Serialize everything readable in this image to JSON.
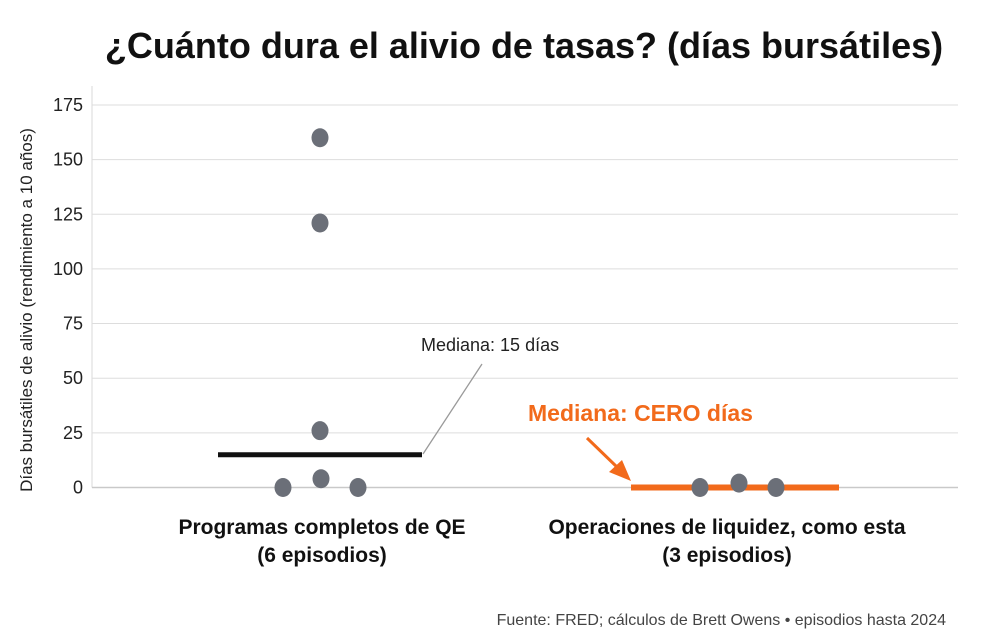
{
  "chart_data": {
    "type": "scatter",
    "title": "¿Cuánto dura el alivio de tasas? (días bursátiles)",
    "ylabel": "Días bursátiles de alivio (rendimiento a 10 años)",
    "ylim": [
      0,
      175
    ],
    "yticks": [
      0,
      25,
      50,
      75,
      100,
      125,
      150,
      175
    ],
    "grid": true,
    "categories": [
      {
        "label_line1": "Programas completos de QE",
        "label_line2": "(6 episodios)",
        "points": [
          0,
          4,
          0,
          26,
          121,
          160
        ],
        "median": 15,
        "median_label": "Mediana: 15 días"
      },
      {
        "label_line1": "Operaciones de liquidez, como esta",
        "label_line2": "(3 episodios)",
        "points": [
          0,
          2,
          0
        ],
        "median": 0,
        "median_label": "Mediana: CERO días"
      }
    ],
    "colors": {
      "points": "#6b6f78",
      "median_qe": "#111111",
      "median_liq": "#f26a1b",
      "grid": "#dddddd"
    }
  },
  "source": "Fuente: FRED; cálculos de Brett Owens • episodios hasta 2024"
}
